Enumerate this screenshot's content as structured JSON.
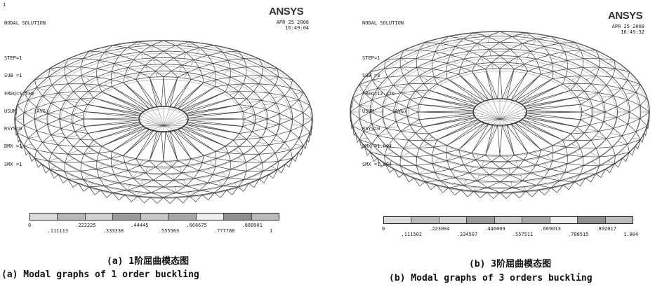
{
  "panels": [
    {
      "corner_label": "1",
      "info_lines": [
        "NODAL SOLUTION",
        "",
        "STEP=1",
        "SUB =1",
        "FREQ=5.539",
        "USUM      (AVG)",
        "RSYS=0",
        "DMX =1",
        "SMX =1"
      ],
      "brand": "ANSYS",
      "date": "APR 25 2008",
      "time": "16:49:04",
      "legend_top": [
        "0",
        ".222225",
        ".44445",
        ".666675",
        ".888901"
      ],
      "legend_bottom": [
        ".111113",
        ".333338",
        ".555563",
        ".777788",
        "1"
      ],
      "caption_cn": "(a) 1阶屈曲模态图",
      "caption_en": "(a) Modal graphs of 1 order buckling"
    },
    {
      "corner_label": "",
      "info_lines": [
        "NODAL SOLUTION",
        "",
        "STEP=1",
        "SUB =3",
        "FREQ=12.476",
        "USUM      (AVG)",
        "RSYS=0",
        "DMX =1.004",
        "SMX =1.004"
      ],
      "brand": "ANSYS",
      "date": "APR 25 2008",
      "time": "16:49:32",
      "legend_top": [
        "0",
        ".223004",
        ".446009",
        ".669013",
        ".892017"
      ],
      "legend_bottom": [
        ".111502",
        ".334507",
        ".557511",
        ".780515",
        "1.004"
      ],
      "caption_cn": "(b) 3阶屈曲模态图",
      "caption_en": "(b) Modal graphs of 3 orders buckling"
    }
  ],
  "legend_colors": [
    "#dcdcdc",
    "#b8b8b8",
    "#d2d2d2",
    "#9c9c9c",
    "#c8c8c8",
    "#a8a8a8",
    "#ececec",
    "#909090",
    "#bcbcbc"
  ],
  "colors": {
    "frame_stroke": "#3a3a3a",
    "ring_stroke": "#555555"
  }
}
